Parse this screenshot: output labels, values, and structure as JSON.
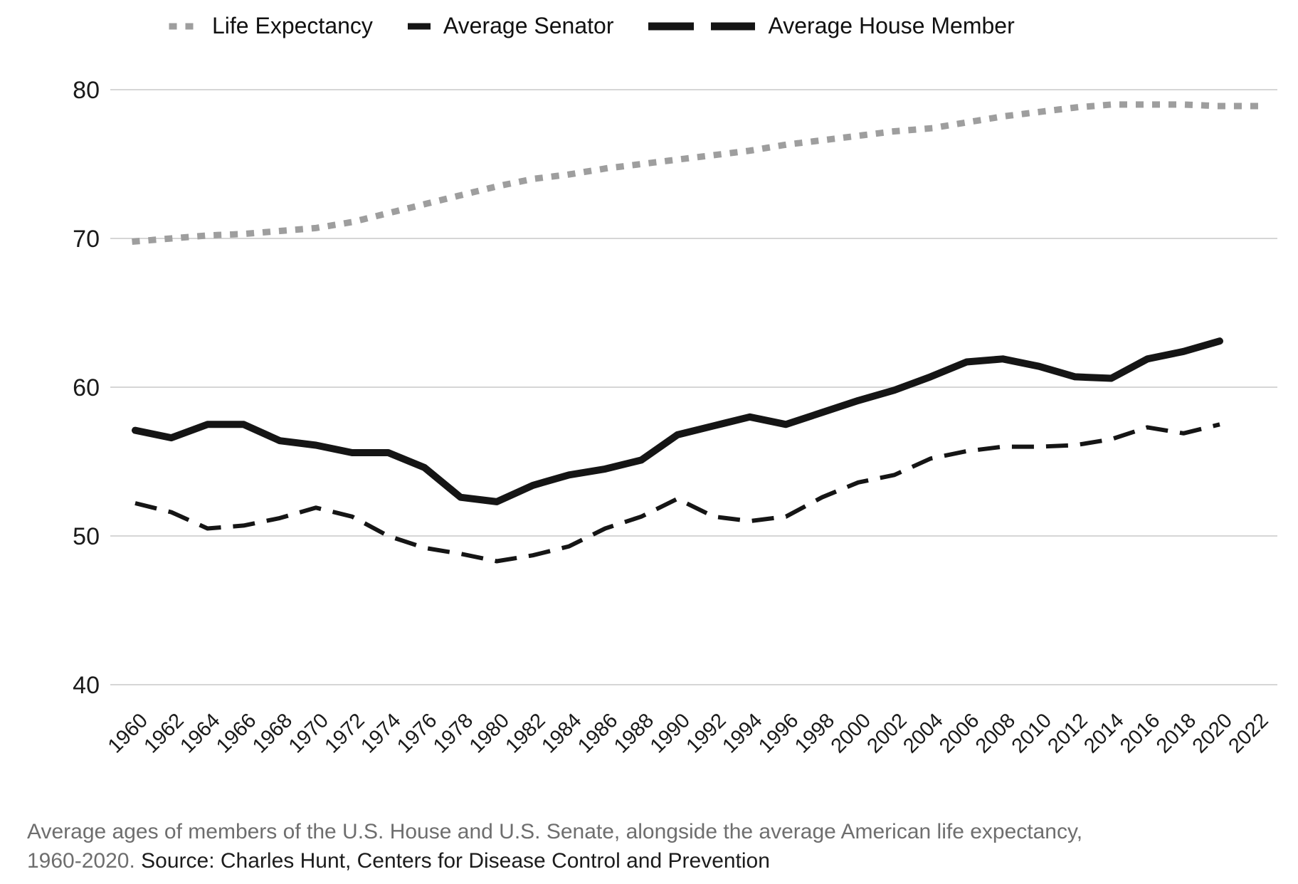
{
  "legend": {
    "position": "top"
  },
  "chart_data": {
    "type": "line",
    "x": [
      1960,
      1962,
      1964,
      1966,
      1968,
      1970,
      1972,
      1974,
      1976,
      1978,
      1980,
      1982,
      1984,
      1986,
      1988,
      1990,
      1992,
      1994,
      1996,
      1998,
      2000,
      2002,
      2004,
      2006,
      2008,
      2010,
      2012,
      2014,
      2016,
      2018,
      2020,
      2022
    ],
    "series": [
      {
        "name": "Life Expectancy",
        "style": "dotted",
        "color": "#9e9e9e",
        "values": [
          69.8,
          70.0,
          70.2,
          70.3,
          70.5,
          70.7,
          71.1,
          71.7,
          72.3,
          72.9,
          73.5,
          74.0,
          74.3,
          74.7,
          75.0,
          75.3,
          75.6,
          75.9,
          76.3,
          76.6,
          76.9,
          77.2,
          77.4,
          77.8,
          78.2,
          78.5,
          78.8,
          79.0,
          79.0,
          79.0,
          78.9,
          78.9
        ]
      },
      {
        "name": "Average Senator",
        "style": "dashed",
        "color": "#151515",
        "values": [
          52.2,
          51.6,
          50.5,
          50.7,
          51.2,
          51.9,
          51.3,
          50.0,
          49.2,
          48.8,
          48.3,
          48.7,
          49.3,
          50.5,
          51.3,
          52.5,
          51.3,
          51.0,
          51.3,
          52.6,
          53.6,
          54.1,
          55.2,
          55.7,
          56.0,
          56.0,
          56.1,
          56.5,
          57.3,
          56.9,
          57.5,
          null
        ]
      },
      {
        "name": "Average House Member",
        "style": "solid",
        "color": "#151515",
        "values": [
          57.1,
          56.6,
          57.5,
          57.5,
          56.4,
          56.1,
          55.6,
          55.6,
          54.6,
          52.6,
          52.3,
          53.4,
          54.1,
          54.5,
          55.1,
          56.8,
          57.4,
          58.0,
          57.5,
          58.3,
          59.1,
          59.8,
          60.7,
          61.7,
          61.9,
          61.4,
          60.7,
          60.6,
          61.9,
          62.4,
          63.1,
          null
        ]
      }
    ],
    "ylim": [
      40,
      80
    ],
    "yticks": [
      80,
      70,
      60,
      50,
      40
    ],
    "grid": true,
    "legend_position": "top",
    "gridline_color": "#d6d6d6"
  },
  "caption": {
    "text": "Average ages of members of the U.S. House and U.S. Senate, alongside the average American life expectancy, 1960-2020.",
    "source": "Source: Charles Hunt, Centers for Disease Control and Prevention"
  }
}
